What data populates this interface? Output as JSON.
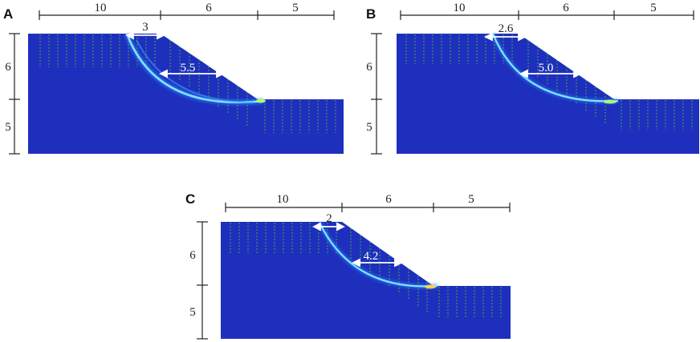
{
  "panels": [
    {
      "letter": "A",
      "widths": [
        "10",
        "6",
        "5"
      ],
      "heights": [
        "6",
        "5"
      ],
      "crest_label": "3",
      "mid_label": "5.5"
    },
    {
      "letter": "B",
      "widths": [
        "10",
        "6",
        "5"
      ],
      "heights": [
        "6",
        "5"
      ],
      "crest_label": "2.6",
      "mid_label": "5.0"
    },
    {
      "letter": "C",
      "widths": [
        "10",
        "6",
        "5"
      ],
      "heights": [
        "6",
        "5"
      ],
      "crest_label": "2",
      "mid_label": "4.2"
    }
  ],
  "colors": {
    "soil": "#1e2fbd",
    "slip_band": "#5fd6ff",
    "pile_green": "#3fae3f",
    "pile_head": "#000000",
    "toe_hotspot": "#ffd24a"
  }
}
